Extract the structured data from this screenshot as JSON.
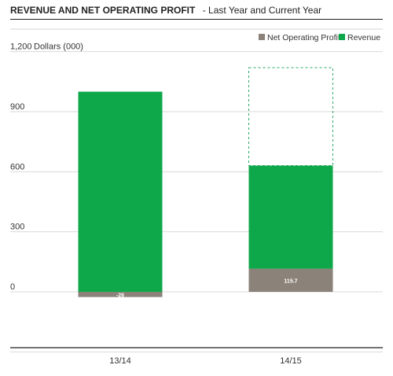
{
  "chart_data": {
    "type": "bar",
    "title": "REVENUE AND NET OPERATING PROFIT",
    "subtitle": "- Last Year and Current Year",
    "ylabel": "Dollars (000)",
    "categories": [
      "13/14",
      "14/15"
    ],
    "y_ticks": [
      "0",
      "300",
      "600",
      "900",
      "1,200"
    ],
    "ylim": [
      -300,
      1200
    ],
    "grid": true,
    "legend_position": "top-right",
    "series": [
      {
        "name": "Net Operating Profit",
        "color": "#8b8279",
        "values": [
          -26,
          115.7
        ],
        "labels": [
          "-26",
          "115.7"
        ]
      },
      {
        "name": "Revenue",
        "color": "#0ea84a",
        "values": [
          1000,
          515
        ]
      }
    ],
    "target": {
      "category": "14/15",
      "value": 1120,
      "style": "dashed",
      "color": "#2aa86a"
    }
  }
}
